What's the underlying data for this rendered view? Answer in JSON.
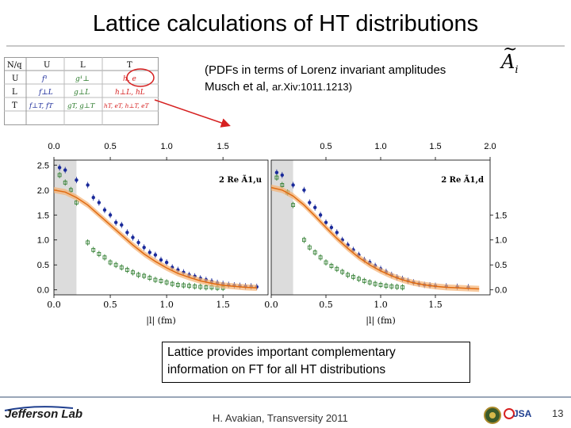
{
  "slide": {
    "title": "Lattice calculations of HT distributions",
    "subtitle_line1": "(PDFs in terms of Lorenz invariant amplitudes",
    "subtitle_line2_main": "Musch et al, ",
    "subtitle_line2_ref": "ar.Xiv:1011.1213)",
    "math_symbol": "A",
    "math_tilde": "~",
    "math_sub": "i",
    "callout_line1": "Lattice provides important complementary",
    "callout_line2": "information on FT for all HT distributions",
    "footer_logo": "Jefferson Lab",
    "footer_center": "H. Avakian, Transversity 2011",
    "footer_badge": "JSA",
    "page_number": "13",
    "colors": {
      "accent_red": "#d62020",
      "blue": "#1a2a9a",
      "green": "#2a7a2a",
      "orange": "#e06a10"
    }
  },
  "table": {
    "corner": "N/q",
    "col_headers": [
      "U",
      "L",
      "T"
    ],
    "row_headers": [
      "U",
      "L",
      "T"
    ],
    "cells": [
      [
        "f¹",
        "g¹⊥",
        "h, e"
      ],
      [
        "f⊥L",
        "g⊥L",
        "h⊥L, hL"
      ],
      [
        "f⊥T, fT",
        "gT, g⊥T",
        "hT, eT, h⊥T, eT"
      ]
    ]
  },
  "chart_data": [
    {
      "type": "scatter",
      "title": "2 Re Ã1,u",
      "xlabel": "|l| (fm)",
      "xlim": [
        0.0,
        1.9
      ],
      "ylim": [
        -0.1,
        2.6
      ],
      "xticks_top": [
        "0.0",
        "0.5",
        "1.0",
        "1.5"
      ],
      "xticks_bottom": [
        "0.0",
        "0.5",
        "1.0",
        "1.5"
      ],
      "yticks_left": [
        "0.0",
        "0.5",
        "1.0",
        "1.5",
        "2.0",
        "2.5"
      ],
      "shaded_region": [
        0.0,
        0.2
      ],
      "series": [
        {
          "name": "blue",
          "color": "#1a2a9a",
          "x": [
            0.05,
            0.1,
            0.2,
            0.3,
            0.35,
            0.4,
            0.45,
            0.5,
            0.55,
            0.6,
            0.65,
            0.7,
            0.75,
            0.8,
            0.85,
            0.9,
            0.95,
            1.0,
            1.05,
            1.1,
            1.15,
            1.2,
            1.25,
            1.3,
            1.35,
            1.4,
            1.45,
            1.5,
            1.55,
            1.6,
            1.65,
            1.7,
            1.75,
            1.8
          ],
          "y": [
            2.45,
            2.4,
            2.2,
            2.1,
            1.85,
            1.75,
            1.6,
            1.5,
            1.35,
            1.3,
            1.15,
            1.05,
            0.95,
            0.85,
            0.75,
            0.7,
            0.6,
            0.55,
            0.45,
            0.4,
            0.35,
            0.3,
            0.27,
            0.23,
            0.2,
            0.17,
            0.14,
            0.12,
            0.1,
            0.09,
            0.08,
            0.07,
            0.07,
            0.06
          ]
        },
        {
          "name": "green",
          "color": "#2a7a2a",
          "x": [
            0.05,
            0.1,
            0.15,
            0.2,
            0.3,
            0.35,
            0.4,
            0.45,
            0.5,
            0.55,
            0.6,
            0.65,
            0.7,
            0.75,
            0.8,
            0.85,
            0.9,
            0.95,
            1.0,
            1.05,
            1.1,
            1.15,
            1.2,
            1.25,
            1.3,
            1.35,
            1.4,
            1.45,
            1.5
          ],
          "y": [
            2.3,
            2.15,
            2.0,
            1.75,
            0.95,
            0.8,
            0.72,
            0.65,
            0.55,
            0.5,
            0.45,
            0.4,
            0.35,
            0.3,
            0.28,
            0.24,
            0.2,
            0.18,
            0.15,
            0.12,
            0.1,
            0.09,
            0.08,
            0.07,
            0.06,
            0.05,
            0.05,
            0.04,
            0.04
          ]
        },
        {
          "name": "fit",
          "color": "#e06a10",
          "type": "band",
          "x": [
            0.0,
            0.1,
            0.2,
            0.3,
            0.4,
            0.5,
            0.6,
            0.7,
            0.8,
            0.9,
            1.0,
            1.1,
            1.2,
            1.3,
            1.4,
            1.5,
            1.6,
            1.7,
            1.8
          ],
          "y": [
            2.0,
            1.96,
            1.85,
            1.7,
            1.5,
            1.3,
            1.1,
            0.9,
            0.72,
            0.57,
            0.44,
            0.33,
            0.25,
            0.18,
            0.13,
            0.09,
            0.07,
            0.05,
            0.04
          ]
        }
      ]
    },
    {
      "type": "scatter",
      "title": "2 Re Ã1,d",
      "xlabel": "|l| (fm)",
      "xlim": [
        0.0,
        2.0
      ],
      "ylim": [
        -0.1,
        2.6
      ],
      "xticks_top": [
        "0.5",
        "1.0",
        "1.5",
        "2.0"
      ],
      "xticks_bottom": [
        "0.0",
        "0.5",
        "1.0",
        "1.5"
      ],
      "yticks_right": [
        "0.0",
        "0.5",
        "1.0",
        "1.5"
      ],
      "shaded_region": [
        0.0,
        0.2
      ],
      "series": [
        {
          "name": "blue",
          "color": "#1a2a9a",
          "x": [
            0.05,
            0.1,
            0.2,
            0.3,
            0.35,
            0.4,
            0.45,
            0.5,
            0.55,
            0.6,
            0.65,
            0.7,
            0.75,
            0.8,
            0.85,
            0.9,
            0.95,
            1.0,
            1.05,
            1.1,
            1.15,
            1.2,
            1.25,
            1.3,
            1.35,
            1.4,
            1.45,
            1.5,
            1.6,
            1.7,
            1.8
          ],
          "y": [
            2.35,
            2.3,
            2.1,
            2.0,
            1.75,
            1.65,
            1.5,
            1.35,
            1.25,
            1.15,
            1.0,
            0.9,
            0.8,
            0.7,
            0.6,
            0.55,
            0.48,
            0.42,
            0.36,
            0.3,
            0.25,
            0.22,
            0.18,
            0.15,
            0.12,
            0.1,
            0.09,
            0.08,
            0.07,
            0.06,
            0.05
          ]
        },
        {
          "name": "green",
          "color": "#2a7a2a",
          "x": [
            0.05,
            0.1,
            0.15,
            0.2,
            0.3,
            0.35,
            0.4,
            0.45,
            0.5,
            0.55,
            0.6,
            0.65,
            0.7,
            0.75,
            0.8,
            0.85,
            0.9,
            0.95,
            1.0,
            1.05,
            1.1,
            1.15,
            1.2
          ],
          "y": [
            2.25,
            2.1,
            1.95,
            1.7,
            1.0,
            0.85,
            0.75,
            0.65,
            0.55,
            0.48,
            0.42,
            0.36,
            0.3,
            0.26,
            0.22,
            0.18,
            0.15,
            0.12,
            0.1,
            0.08,
            0.07,
            0.06,
            0.05
          ]
        },
        {
          "name": "fit",
          "color": "#e06a10",
          "type": "band",
          "x": [
            0.0,
            0.1,
            0.2,
            0.3,
            0.4,
            0.5,
            0.6,
            0.7,
            0.8,
            0.9,
            1.0,
            1.1,
            1.2,
            1.3,
            1.4,
            1.5,
            1.6,
            1.7,
            1.8,
            1.9
          ],
          "y": [
            2.05,
            2.0,
            1.88,
            1.7,
            1.48,
            1.25,
            1.03,
            0.83,
            0.65,
            0.5,
            0.38,
            0.28,
            0.2,
            0.14,
            0.1,
            0.07,
            0.05,
            0.04,
            0.03,
            0.02
          ]
        }
      ]
    }
  ]
}
